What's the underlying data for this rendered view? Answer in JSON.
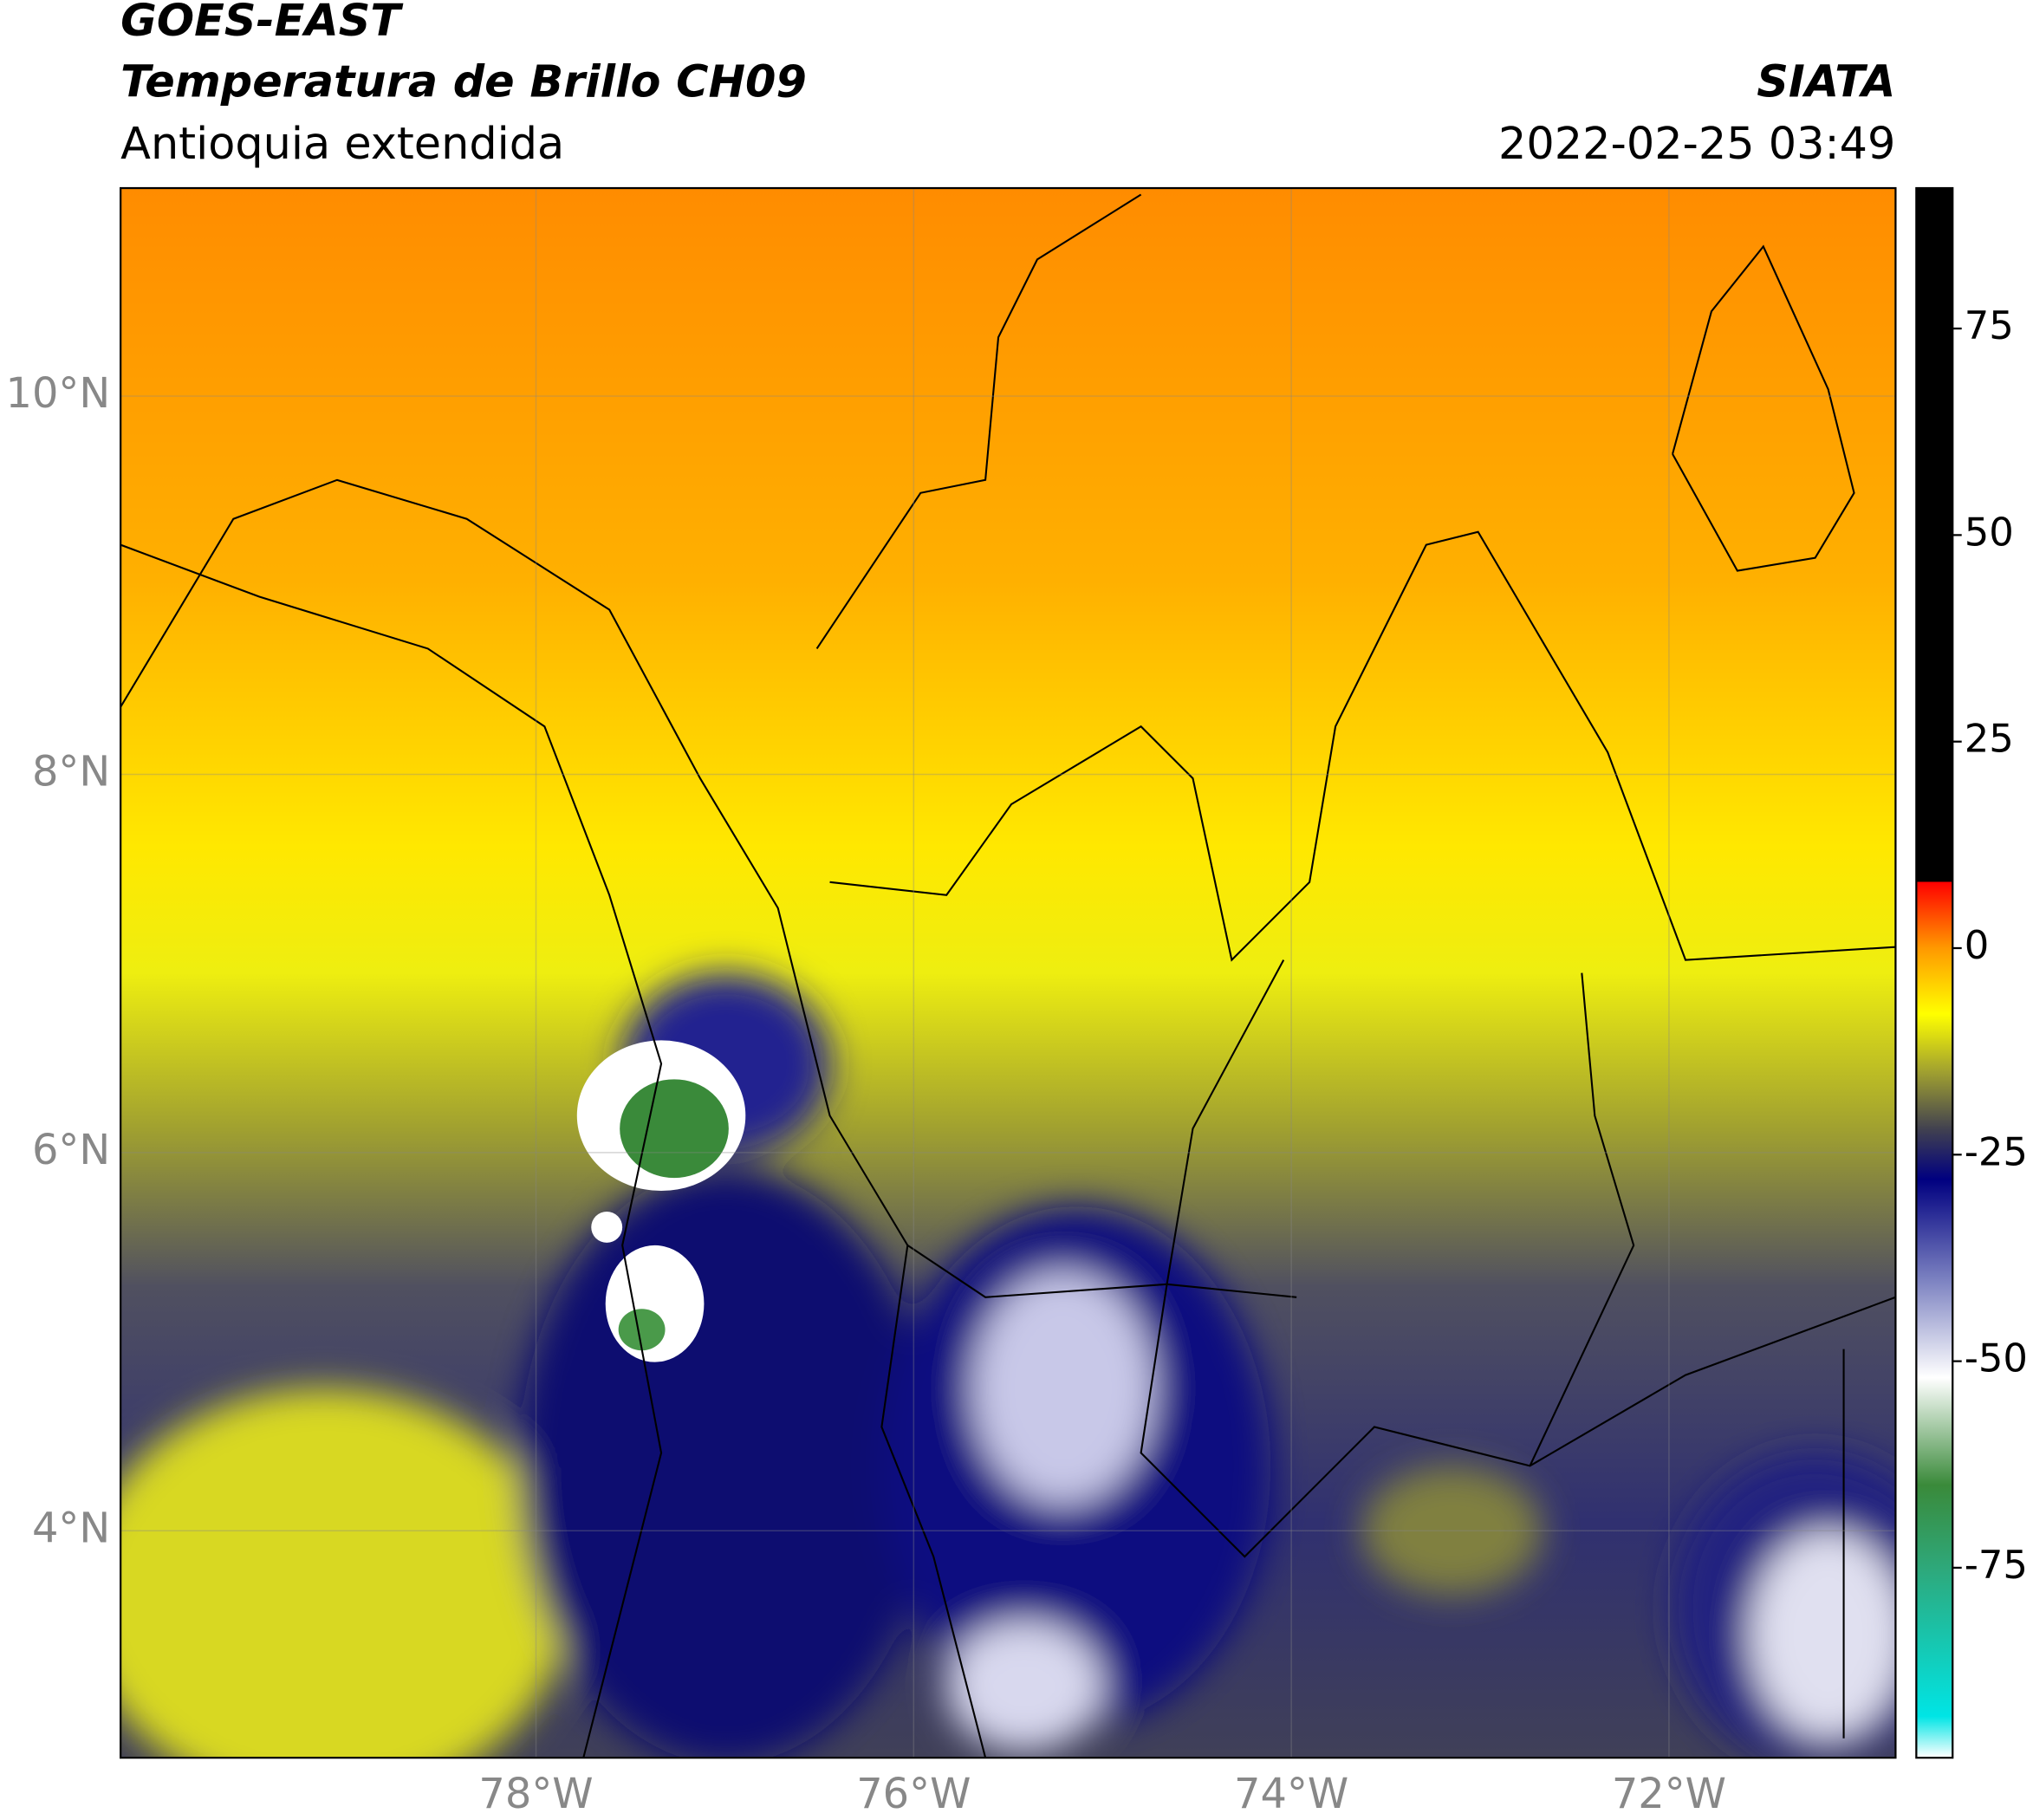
{
  "header": {
    "title": "GOES-EAST",
    "subtitle": "Temperatura de Brillo CH09",
    "region": "Antioquia extendida",
    "source": "SIATA",
    "datetime": "2022-02-25 03:49"
  },
  "map": {
    "xlim": [
      -80.2,
      -70.8
    ],
    "ylim": [
      2.8,
      11.1
    ],
    "xticks": [
      {
        "value": -78,
        "label": "78°W"
      },
      {
        "value": -76,
        "label": "76°W"
      },
      {
        "value": -74,
        "label": "74°W"
      },
      {
        "value": -72,
        "label": "72°W"
      }
    ],
    "yticks": [
      {
        "value": 10,
        "label": "10°N"
      },
      {
        "value": 8,
        "label": "8°N"
      },
      {
        "value": 6,
        "label": "6°N"
      },
      {
        "value": 4,
        "label": "4°N"
      }
    ],
    "grid": true
  },
  "colorbar": {
    "clim": [
      -98,
      92
    ],
    "ticks": [
      75,
      50,
      25,
      0,
      -25,
      -50,
      -75
    ],
    "colormap": [
      {
        "value": -98,
        "color": "#ffffff"
      },
      {
        "value": -93,
        "color": "#00e5e5"
      },
      {
        "value": -75,
        "color": "#2ea87a"
      },
      {
        "value": -65,
        "color": "#3a8a3a"
      },
      {
        "value": -52,
        "color": "#ffffff"
      },
      {
        "value": -40,
        "color": "#7a80c0"
      },
      {
        "value": -28,
        "color": "#000080"
      },
      {
        "value": -22,
        "color": "#404050"
      },
      {
        "value": -15,
        "color": "#a0a030"
      },
      {
        "value": -8,
        "color": "#ffff00"
      },
      {
        "value": 0,
        "color": "#ff9900"
      },
      {
        "value": 8,
        "color": "#ff0000"
      },
      {
        "value": 8.01,
        "color": "#000000"
      },
      {
        "value": 92,
        "color": "#000000"
      }
    ]
  }
}
